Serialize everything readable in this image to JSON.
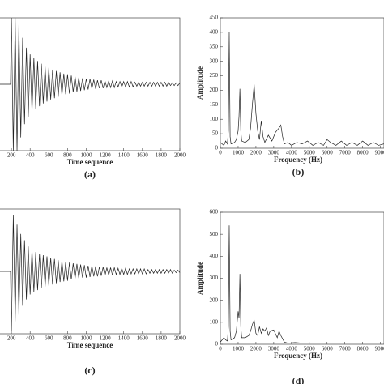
{
  "chart_data": [
    {
      "type": "line",
      "xlabel": "Time sequence",
      "caption": "(a)",
      "xlim": [
        0,
        2000
      ],
      "ylim": [
        -1,
        1
      ],
      "xticks": [
        200,
        400,
        600,
        800,
        1000,
        1200,
        1400,
        1600,
        1800,
        2000
      ],
      "x": [
        0,
        190,
        200,
        220,
        240,
        260,
        280,
        300,
        320,
        340,
        360,
        380,
        400,
        420,
        440,
        460,
        480,
        500,
        520,
        540,
        560,
        580,
        600,
        620,
        640,
        660,
        680,
        700,
        720,
        740,
        760,
        780,
        800,
        820,
        840,
        860,
        880,
        900,
        920,
        940,
        960,
        980,
        1000,
        1020,
        1040,
        1060,
        1080,
        1100,
        1120,
        1140,
        1160,
        1180,
        1200,
        1220,
        1240,
        1260,
        1280,
        1300,
        1320,
        1340,
        1360,
        1380,
        1400,
        1420,
        1440,
        1460,
        1480,
        1500,
        1520,
        1540,
        1560,
        1580,
        1600,
        1620,
        1640,
        1660,
        1680,
        1700,
        1720,
        1740,
        1760,
        1780,
        1800,
        1820,
        1840,
        1860,
        1880,
        1900,
        1920,
        1940,
        1960,
        1980,
        2000
      ],
      "series": [
        {
          "color": "#222222",
          "values": [
            0,
            0,
            1,
            -1,
            1,
            -1,
            0.9,
            -0.8,
            0.7,
            -0.6,
            0.55,
            -0.5,
            0.45,
            -0.42,
            0.4,
            -0.37,
            0.35,
            -0.33,
            0.31,
            -0.29,
            0.27,
            -0.26,
            0.25,
            -0.23,
            0.22,
            -0.21,
            0.2,
            -0.19,
            0.18,
            -0.17,
            0.16,
            -0.15,
            0.15,
            -0.14,
            0.13,
            -0.12,
            0.12,
            -0.11,
            0.1,
            -0.1,
            0.09,
            -0.09,
            0.08,
            -0.08,
            0.08,
            -0.07,
            0.07,
            -0.07,
            0.06,
            -0.06,
            0.06,
            -0.06,
            0.05,
            -0.05,
            0.05,
            -0.05,
            0.05,
            -0.05,
            0.04,
            -0.04,
            0.04,
            -0.04,
            0.04,
            -0.04,
            0.04,
            -0.04,
            0.04,
            -0.04,
            0.03,
            -0.03,
            0.03,
            -0.03,
            0.03,
            -0.03,
            0.03,
            -0.03,
            0.03,
            -0.03,
            0.03,
            -0.03,
            0.03,
            -0.03,
            0.03,
            -0.03,
            0.03,
            -0.03,
            0.03,
            -0.02,
            0.02,
            -0.02,
            0.02,
            -0.02,
            0.02
          ]
        }
      ]
    },
    {
      "type": "line",
      "xlabel": "Frequency (Hz)",
      "ylabel": "Amplitude",
      "caption": "(b)",
      "xlim": [
        0,
        9200
      ],
      "ylim": [
        0,
        450
      ],
      "xticks": [
        0,
        1000,
        2000,
        3000,
        4000,
        5000,
        6000,
        7000,
        8000,
        9000
      ],
      "yticks": [
        0,
        50,
        100,
        150,
        200,
        250,
        300,
        350,
        400,
        450
      ],
      "x": [
        0,
        200,
        300,
        400,
        450,
        500,
        550,
        600,
        800,
        900,
        1000,
        1050,
        1100,
        1150,
        1200,
        1400,
        1600,
        1700,
        1800,
        1900,
        2000,
        2100,
        2200,
        2300,
        2400,
        2500,
        2700,
        2900,
        3100,
        3300,
        3400,
        3500,
        3600,
        3800,
        4000,
        4300,
        4600,
        4900,
        5200,
        5500,
        5800,
        6000,
        6200,
        6500,
        6800,
        7100,
        7400,
        7700,
        8000,
        8300,
        8600,
        8900,
        9200
      ],
      "series": [
        {
          "color": "#222222",
          "values": [
            20,
            10,
            25,
            15,
            60,
            400,
            40,
            15,
            20,
            30,
            60,
            110,
            205,
            60,
            25,
            20,
            30,
            70,
            150,
            220,
            120,
            60,
            30,
            95,
            40,
            20,
            45,
            25,
            55,
            70,
            80,
            40,
            15,
            20,
            10,
            20,
            15,
            25,
            10,
            20,
            10,
            30,
            20,
            10,
            25,
            10,
            20,
            10,
            25,
            10,
            20,
            10,
            15
          ]
        }
      ]
    },
    {
      "type": "line",
      "xlabel": "Time sequence",
      "caption": "(c)",
      "xlim": [
        0,
        2000
      ],
      "ylim": [
        -1,
        1
      ],
      "xticks": [
        200,
        400,
        600,
        800,
        1000,
        1200,
        1400,
        1600,
        1800,
        2000
      ],
      "x": [
        0,
        190,
        200,
        220,
        240,
        260,
        280,
        300,
        320,
        340,
        360,
        380,
        400,
        420,
        440,
        460,
        480,
        500,
        520,
        540,
        560,
        580,
        600,
        620,
        640,
        660,
        680,
        700,
        720,
        740,
        760,
        780,
        800,
        820,
        840,
        860,
        880,
        900,
        920,
        940,
        960,
        980,
        1000,
        1020,
        1040,
        1060,
        1080,
        1100,
        1120,
        1140,
        1160,
        1180,
        1200,
        1220,
        1240,
        1260,
        1280,
        1300,
        1320,
        1340,
        1360,
        1380,
        1400,
        1420,
        1440,
        1460,
        1480,
        1500,
        1520,
        1540,
        1560,
        1580,
        1600,
        1620,
        1640,
        1660,
        1680,
        1700,
        1720,
        1740,
        1760,
        1780,
        1800,
        1820,
        1840,
        1860,
        1880,
        1900,
        1920,
        1940,
        1960,
        1980,
        2000
      ],
      "series": [
        {
          "color": "#222222",
          "values": [
            0,
            0,
            -0.95,
            0.9,
            -0.8,
            0.75,
            -0.7,
            0.6,
            -0.55,
            0.5,
            -0.45,
            0.4,
            -0.37,
            0.35,
            -0.33,
            0.31,
            -0.3,
            0.28,
            -0.27,
            0.26,
            -0.25,
            0.24,
            -0.23,
            0.22,
            -0.21,
            0.2,
            -0.19,
            0.18,
            -0.17,
            0.17,
            -0.16,
            0.15,
            -0.15,
            0.14,
            -0.13,
            0.13,
            -0.12,
            0.12,
            -0.11,
            0.11,
            -0.1,
            0.1,
            -0.1,
            0.09,
            -0.09,
            0.09,
            -0.08,
            0.08,
            -0.08,
            0.07,
            -0.07,
            0.07,
            -0.07,
            0.06,
            -0.06,
            0.06,
            -0.06,
            0.06,
            -0.05,
            0.05,
            -0.05,
            0.05,
            -0.05,
            0.05,
            -0.05,
            0.04,
            -0.04,
            0.04,
            -0.04,
            0.04,
            -0.04,
            0.04,
            -0.04,
            0.04,
            -0.04,
            0.03,
            -0.03,
            0.03,
            -0.03,
            0.03,
            -0.03,
            0.03,
            -0.03,
            0.03,
            -0.03,
            0.03,
            -0.03,
            0.03,
            -0.03,
            0.02,
            -0.02,
            0.02,
            -0.02
          ]
        }
      ]
    },
    {
      "type": "line",
      "xlabel": "Frequency (Hz)",
      "ylabel": "Amplitude",
      "caption": "(d)",
      "xlim": [
        0,
        9200
      ],
      "ylim": [
        0,
        600
      ],
      "xticks": [
        0,
        1000,
        2000,
        3000,
        4000,
        5000,
        6000,
        7000,
        8000,
        9000
      ],
      "yticks": [
        0,
        100,
        200,
        300,
        400,
        500,
        600
      ],
      "x": [
        0,
        200,
        300,
        400,
        450,
        500,
        550,
        600,
        800,
        900,
        1000,
        1050,
        1100,
        1150,
        1200,
        1400,
        1600,
        1700,
        1800,
        1900,
        2000,
        2100,
        2200,
        2300,
        2400,
        2500,
        2600,
        2700,
        2800,
        3000,
        3200,
        3300,
        3400,
        3600,
        3800,
        4200,
        4600,
        5000,
        5500,
        6000,
        6500,
        7000,
        7500,
        8000,
        8500,
        9200
      ],
      "series": [
        {
          "color": "#222222",
          "values": [
            10,
            30,
            20,
            15,
            80,
            540,
            60,
            20,
            30,
            60,
            150,
            120,
            320,
            80,
            30,
            30,
            40,
            60,
            90,
            110,
            50,
            40,
            80,
            50,
            70,
            60,
            75,
            40,
            60,
            65,
            30,
            60,
            40,
            10,
            5,
            8,
            5,
            5,
            5,
            5,
            5,
            5,
            5,
            5,
            5,
            5
          ]
        }
      ]
    }
  ]
}
